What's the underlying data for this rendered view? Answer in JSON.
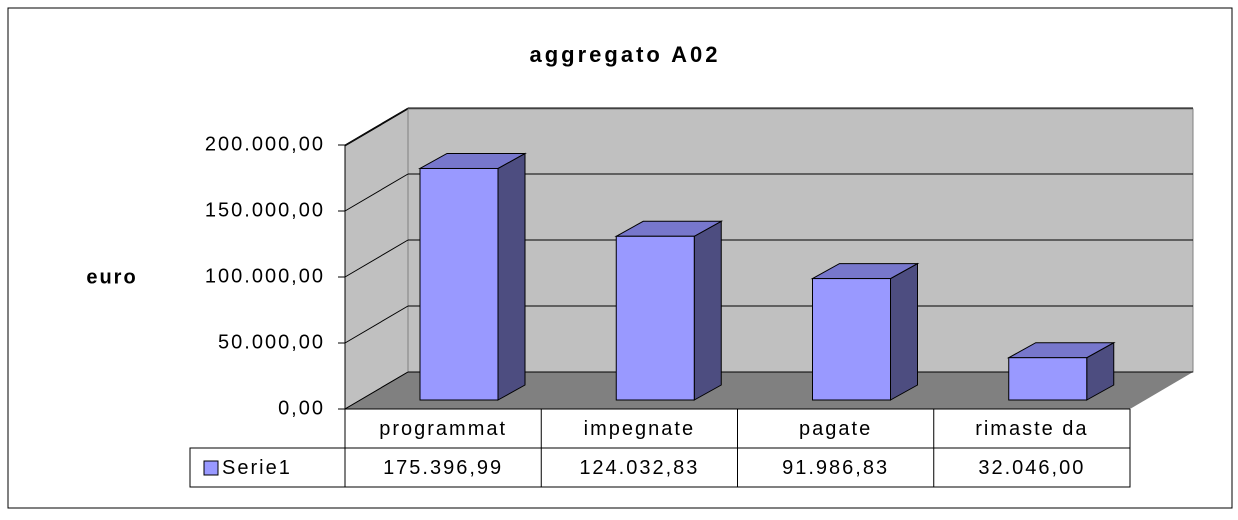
{
  "chart_data": {
    "type": "bar3d",
    "title": "aggregato A02",
    "y_label": "euro",
    "categories": [
      "programmat",
      "impegnate",
      "pagate",
      "rimaste da"
    ],
    "series": [
      {
        "name": "Serie1",
        "color": "#9999ff",
        "values": [
          175396.99,
          124032.83,
          91986.83,
          32046.0
        ],
        "value_labels": [
          "175.396,99",
          "124.032,83",
          "91.986,83",
          "32.046,00"
        ]
      }
    ],
    "ylim": [
      0,
      200000
    ],
    "yticks": [
      {
        "value": 0,
        "label": "0,00"
      },
      {
        "value": 50000,
        "label": "50.000,00"
      },
      {
        "value": 100000,
        "label": "100.000,00"
      },
      {
        "value": 150000,
        "label": "150.000,00"
      },
      {
        "value": 200000,
        "label": "200.000,00"
      }
    ],
    "grid": true,
    "data_table": true
  }
}
